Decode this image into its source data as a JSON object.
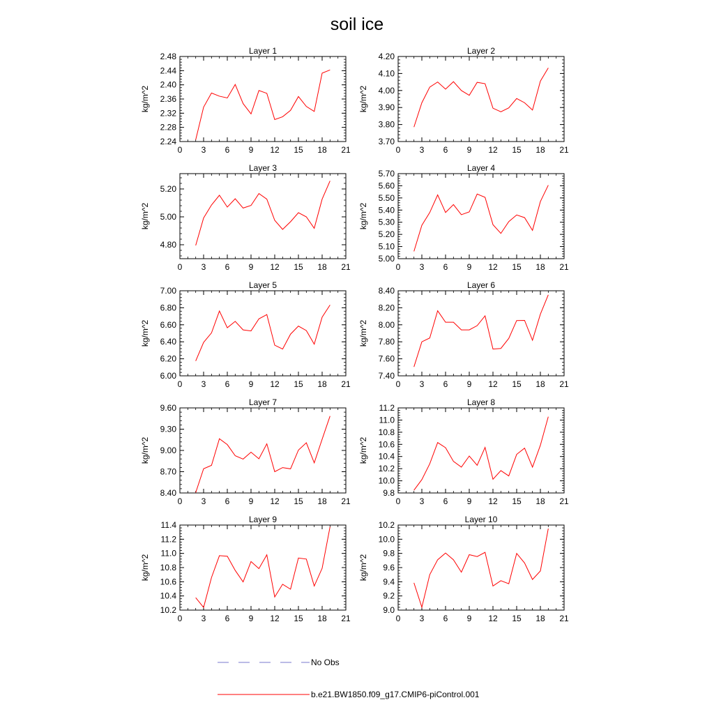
{
  "figure": {
    "title": "soil ice"
  },
  "legend": {
    "entries": [
      {
        "label": "No Obs",
        "color": "#7777cc",
        "style": "dashed"
      },
      {
        "label": "b.e21.BW1850.f09_g17.CMIP6-piControl.001",
        "color": "#ff0000",
        "style": "solid"
      }
    ]
  },
  "chart_data": [
    {
      "type": "line",
      "title": "Layer 1",
      "ylabel": "kg/m^2",
      "xlim": [
        0,
        21
      ],
      "ylim": [
        2.24,
        2.48
      ],
      "xticks": [
        0,
        3,
        6,
        9,
        12,
        15,
        18,
        21
      ],
      "xtick_labels": [
        "0",
        "3",
        "6",
        "9",
        "12",
        "15",
        "18",
        "21"
      ],
      "yticks": [
        2.24,
        2.28,
        2.32,
        2.36,
        2.4,
        2.44,
        2.48
      ],
      "ytick_labels": [
        "2.24",
        "2.28",
        "2.32",
        "2.36",
        "2.40",
        "2.44",
        "2.48"
      ],
      "x": [
        2,
        3,
        4,
        5,
        6,
        7,
        8,
        9,
        10,
        11,
        12,
        13,
        14,
        15,
        16,
        17,
        18,
        19
      ],
      "series": [
        {
          "values": [
            2.245,
            2.337,
            2.377,
            2.368,
            2.363,
            2.401,
            2.347,
            2.318,
            2.384,
            2.376,
            2.302,
            2.31,
            2.328,
            2.367,
            2.339,
            2.325,
            2.433,
            2.442
          ]
        }
      ]
    },
    {
      "type": "line",
      "title": "Layer 2",
      "ylabel": "kg/m^2",
      "xlim": [
        0,
        21
      ],
      "ylim": [
        3.7,
        4.2
      ],
      "xticks": [
        0,
        3,
        6,
        9,
        12,
        15,
        18,
        21
      ],
      "xtick_labels": [
        "0",
        "3",
        "6",
        "9",
        "12",
        "15",
        "18",
        "21"
      ],
      "yticks": [
        3.7,
        3.8,
        3.9,
        4.0,
        4.1,
        4.2
      ],
      "ytick_labels": [
        "3.70",
        "3.80",
        "3.90",
        "4.00",
        "4.10",
        "4.20"
      ],
      "x": [
        2,
        3,
        4,
        5,
        6,
        7,
        8,
        9,
        10,
        11,
        12,
        13,
        14,
        15,
        16,
        17,
        18,
        19
      ],
      "series": [
        {
          "values": [
            3.785,
            3.928,
            4.02,
            4.05,
            4.008,
            4.052,
            4.0,
            3.972,
            4.048,
            4.04,
            3.896,
            3.875,
            3.898,
            3.953,
            3.928,
            3.885,
            4.055,
            4.133
          ]
        }
      ]
    },
    {
      "type": "line",
      "title": "Layer 3",
      "ylabel": "kg/m^2",
      "xlim": [
        0,
        21
      ],
      "ylim": [
        4.7,
        5.31
      ],
      "xticks": [
        0,
        3,
        6,
        9,
        12,
        15,
        18,
        21
      ],
      "xtick_labels": [
        "0",
        "3",
        "6",
        "9",
        "12",
        "15",
        "18",
        "21"
      ],
      "yticks": [
        4.8,
        5.0,
        5.2
      ],
      "ytick_labels": [
        "4.80",
        "5.00",
        "5.20"
      ],
      "x": [
        2,
        3,
        4,
        5,
        6,
        7,
        8,
        9,
        10,
        11,
        12,
        13,
        14,
        15,
        16,
        17,
        18,
        19
      ],
      "series": [
        {
          "values": [
            4.795,
            4.992,
            5.085,
            5.155,
            5.07,
            5.13,
            5.063,
            5.082,
            5.167,
            5.127,
            4.975,
            4.91,
            4.965,
            5.03,
            5.0,
            4.918,
            5.127,
            5.258
          ]
        }
      ]
    },
    {
      "type": "line",
      "title": "Layer 4",
      "ylabel": "kg/m^2",
      "xlim": [
        0,
        21
      ],
      "ylim": [
        5.0,
        5.7
      ],
      "xticks": [
        0,
        3,
        6,
        9,
        12,
        15,
        18,
        21
      ],
      "xtick_labels": [
        "0",
        "3",
        "6",
        "9",
        "12",
        "15",
        "18",
        "21"
      ],
      "yticks": [
        5.0,
        5.1,
        5.2,
        5.3,
        5.4,
        5.5,
        5.6,
        5.7
      ],
      "ytick_labels": [
        "5.00",
        "5.10",
        "5.20",
        "5.30",
        "5.40",
        "5.50",
        "5.60",
        "5.70"
      ],
      "x": [
        2,
        3,
        4,
        5,
        6,
        7,
        8,
        9,
        10,
        11,
        12,
        13,
        14,
        15,
        16,
        17,
        18,
        19
      ],
      "series": [
        {
          "values": [
            5.06,
            5.275,
            5.38,
            5.525,
            5.38,
            5.445,
            5.362,
            5.385,
            5.532,
            5.505,
            5.28,
            5.208,
            5.305,
            5.36,
            5.338,
            5.233,
            5.47,
            5.605
          ]
        }
      ]
    },
    {
      "type": "line",
      "title": "Layer 5",
      "ylabel": "kg/m^2",
      "xlim": [
        0,
        21
      ],
      "ylim": [
        6.0,
        7.0
      ],
      "xticks": [
        0,
        3,
        6,
        9,
        12,
        15,
        18,
        21
      ],
      "xtick_labels": [
        "0",
        "3",
        "6",
        "9",
        "12",
        "15",
        "18",
        "21"
      ],
      "yticks": [
        6.0,
        6.2,
        6.4,
        6.6,
        6.8,
        7.0
      ],
      "ytick_labels": [
        "6.00",
        "6.20",
        "6.40",
        "6.60",
        "6.80",
        "7.00"
      ],
      "x": [
        2,
        3,
        4,
        5,
        6,
        7,
        8,
        9,
        10,
        11,
        12,
        13,
        14,
        15,
        16,
        17,
        18,
        19
      ],
      "series": [
        {
          "values": [
            6.175,
            6.393,
            6.505,
            6.762,
            6.565,
            6.64,
            6.54,
            6.528,
            6.67,
            6.72,
            6.36,
            6.315,
            6.49,
            6.585,
            6.532,
            6.372,
            6.69,
            6.833
          ]
        }
      ]
    },
    {
      "type": "line",
      "title": "Layer 6",
      "ylabel": "kg/m^2",
      "xlim": [
        0,
        21
      ],
      "ylim": [
        7.4,
        8.4
      ],
      "xticks": [
        0,
        3,
        6,
        9,
        12,
        15,
        18,
        21
      ],
      "xtick_labels": [
        "0",
        "3",
        "6",
        "9",
        "12",
        "15",
        "18",
        "21"
      ],
      "yticks": [
        7.4,
        7.6,
        7.8,
        8.0,
        8.2,
        8.4
      ],
      "ytick_labels": [
        "7.40",
        "7.60",
        "7.80",
        "8.00",
        "8.20",
        "8.40"
      ],
      "x": [
        2,
        3,
        4,
        5,
        6,
        7,
        8,
        9,
        10,
        11,
        12,
        13,
        14,
        15,
        16,
        17,
        18,
        19
      ],
      "series": [
        {
          "values": [
            7.505,
            7.8,
            7.845,
            8.165,
            8.03,
            8.03,
            7.94,
            7.94,
            7.99,
            8.105,
            7.715,
            7.722,
            7.84,
            8.05,
            8.052,
            7.818,
            8.125,
            8.352
          ]
        }
      ]
    },
    {
      "type": "line",
      "title": "Layer 7",
      "ylabel": "kg/m^2",
      "xlim": [
        0,
        21
      ],
      "ylim": [
        8.4,
        9.6
      ],
      "xticks": [
        0,
        3,
        6,
        9,
        12,
        15,
        18,
        21
      ],
      "xtick_labels": [
        "0",
        "3",
        "6",
        "9",
        "12",
        "15",
        "18",
        "21"
      ],
      "yticks": [
        8.4,
        8.7,
        9.0,
        9.3,
        9.6
      ],
      "ytick_labels": [
        "8.40",
        "8.70",
        "9.00",
        "9.30",
        "9.60"
      ],
      "x": [
        2,
        3,
        4,
        5,
        6,
        7,
        8,
        9,
        10,
        11,
        12,
        13,
        14,
        15,
        16,
        17,
        18,
        19
      ],
      "series": [
        {
          "values": [
            8.405,
            8.742,
            8.79,
            9.165,
            9.082,
            8.925,
            8.878,
            8.975,
            8.882,
            9.093,
            8.7,
            8.758,
            8.74,
            9.005,
            9.108,
            8.825,
            9.158,
            9.485
          ]
        }
      ]
    },
    {
      "type": "line",
      "title": "Layer 8",
      "ylabel": "kg/m^2",
      "xlim": [
        0,
        21
      ],
      "ylim": [
        9.8,
        11.2
      ],
      "xticks": [
        0,
        3,
        6,
        9,
        12,
        15,
        18,
        21
      ],
      "xtick_labels": [
        "0",
        "3",
        "6",
        "9",
        "12",
        "15",
        "18",
        "21"
      ],
      "yticks": [
        9.8,
        10.0,
        10.2,
        10.4,
        10.6,
        10.8,
        11.0,
        11.2
      ],
      "ytick_labels": [
        "9.8",
        "10.0",
        "10.2",
        "10.4",
        "10.6",
        "10.8",
        "11.0",
        "11.2"
      ],
      "x": [
        2,
        3,
        4,
        5,
        6,
        7,
        8,
        9,
        10,
        11,
        12,
        13,
        14,
        15,
        16,
        17,
        18,
        19
      ],
      "series": [
        {
          "values": [
            9.845,
            10.02,
            10.28,
            10.63,
            10.545,
            10.32,
            10.225,
            10.408,
            10.255,
            10.55,
            10.025,
            10.168,
            10.08,
            10.435,
            10.538,
            10.225,
            10.585,
            11.055
          ]
        }
      ]
    },
    {
      "type": "line",
      "title": "Layer 9",
      "ylabel": "kg/m^2",
      "xlim": [
        0,
        21
      ],
      "ylim": [
        10.2,
        11.4
      ],
      "xticks": [
        0,
        3,
        6,
        9,
        12,
        15,
        18,
        21
      ],
      "xtick_labels": [
        "0",
        "3",
        "6",
        "9",
        "12",
        "15",
        "18",
        "21"
      ],
      "yticks": [
        10.2,
        10.4,
        10.6,
        10.8,
        11.0,
        11.2,
        11.4
      ],
      "ytick_labels": [
        "10.2",
        "10.4",
        "10.6",
        "10.8",
        "11.0",
        "11.2",
        "11.4"
      ],
      "x": [
        2,
        3,
        4,
        5,
        6,
        7,
        8,
        9,
        10,
        11,
        12,
        13,
        14,
        15,
        16,
        17,
        18,
        19
      ],
      "series": [
        {
          "values": [
            10.375,
            10.238,
            10.66,
            10.968,
            10.96,
            10.76,
            10.598,
            10.885,
            10.785,
            10.98,
            10.385,
            10.565,
            10.495,
            10.935,
            10.92,
            10.54,
            10.79,
            11.375
          ]
        }
      ]
    },
    {
      "type": "line",
      "title": "Layer 10",
      "ylabel": "kg/m^2",
      "xlim": [
        0,
        21
      ],
      "ylim": [
        9.0,
        10.2
      ],
      "xticks": [
        0,
        3,
        6,
        9,
        12,
        15,
        18,
        21
      ],
      "xtick_labels": [
        "0",
        "3",
        "6",
        "9",
        "12",
        "15",
        "18",
        "21"
      ],
      "yticks": [
        9.0,
        9.2,
        9.4,
        9.6,
        9.8,
        10.0,
        10.2
      ],
      "ytick_labels": [
        "9.0",
        "9.2",
        "9.4",
        "9.6",
        "9.8",
        "10.0",
        "10.2"
      ],
      "x": [
        2,
        3,
        4,
        5,
        6,
        7,
        8,
        9,
        10,
        11,
        12,
        13,
        14,
        15,
        16,
        17,
        18,
        19
      ],
      "series": [
        {
          "values": [
            9.385,
            9.04,
            9.5,
            9.71,
            9.805,
            9.71,
            9.535,
            9.782,
            9.755,
            9.815,
            9.34,
            9.415,
            9.372,
            9.8,
            9.665,
            9.432,
            9.552,
            10.15
          ]
        }
      ]
    }
  ]
}
